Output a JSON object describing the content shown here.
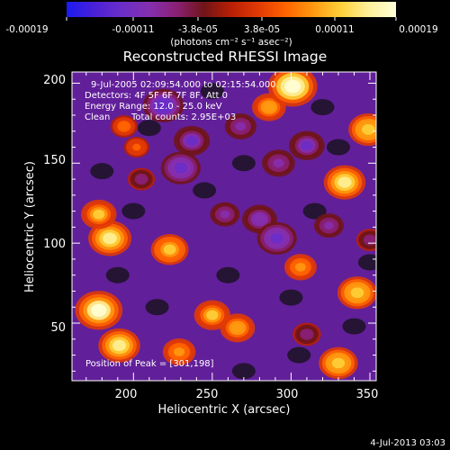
{
  "colorbar": {
    "tick_labels": [
      "-0.00019",
      "-0.00011",
      "-3.8e-05",
      "3.8e-05",
      "0.00011",
      "0.00019"
    ],
    "unit_label": "(photons cm⁻² s⁻¹ asec⁻²)",
    "colors": [
      "#1b1bf0",
      "#4a20d8",
      "#6a2ec8",
      "#852fb0",
      "#8a2075",
      "#701418",
      "#b81f05",
      "#e13a05",
      "#ff6400",
      "#ff9a10",
      "#ffd13a",
      "#fff09a",
      "#ffffd8"
    ]
  },
  "chart_data": {
    "type": "heatmap",
    "title": "Reconstructed RHESSI Image",
    "xlabel": "Heliocentric X (arcsec)",
    "ylabel": "Heliocentric Y (arcsec)",
    "xlim": [
      161,
      354
    ],
    "ylim": [
      14,
      207
    ],
    "xticks": [
      200,
      250,
      300,
      350
    ],
    "yticks": [
      50,
      100,
      150,
      200
    ],
    "color_scale_range": [
      -0.00019,
      0.00019
    ],
    "annotations": [
      "9-Jul-2005 02:09:54.000 to 02:15:54.000",
      "Detectors: 4F 5F 6F 7F 8F, Att 0",
      "Energy Range: 12.0 - 25.0 keV",
      "Clean",
      "Total counts: 2.95E+03"
    ],
    "peak_label": "Position of Peak = [301,198]",
    "peak_position": [
      301,
      198
    ],
    "approximate_bright_sources": [
      {
        "x": 178,
        "y": 58,
        "level": 0.95
      },
      {
        "x": 191,
        "y": 36,
        "level": 0.78
      },
      {
        "x": 185,
        "y": 103,
        "level": 0.82
      },
      {
        "x": 178,
        "y": 118,
        "level": 0.6
      },
      {
        "x": 223,
        "y": 96,
        "level": 0.66
      },
      {
        "x": 250,
        "y": 55,
        "level": 0.62
      },
      {
        "x": 229,
        "y": 32,
        "level": 0.52
      },
      {
        "x": 266,
        "y": 47,
        "level": 0.58
      },
      {
        "x": 334,
        "y": 138,
        "level": 0.78
      },
      {
        "x": 342,
        "y": 69,
        "level": 0.72
      },
      {
        "x": 330,
        "y": 25,
        "level": 0.7
      },
      {
        "x": 306,
        "y": 85,
        "level": 0.5
      },
      {
        "x": 349,
        "y": 171,
        "level": 0.72
      },
      {
        "x": 286,
        "y": 185,
        "level": 0.55
      },
      {
        "x": 301,
        "y": 198,
        "level": 1.0
      },
      {
        "x": 194,
        "y": 173,
        "level": 0.35
      },
      {
        "x": 202,
        "y": 160,
        "level": 0.3
      }
    ],
    "approximate_negative_sources": [
      {
        "x": 219,
        "y": 186,
        "level": -0.75
      },
      {
        "x": 237,
        "y": 164,
        "level": -0.62
      },
      {
        "x": 230,
        "y": 147,
        "level": -0.72
      },
      {
        "x": 268,
        "y": 173,
        "level": -0.48
      },
      {
        "x": 310,
        "y": 161,
        "level": -0.6
      },
      {
        "x": 292,
        "y": 150,
        "level": -0.52
      },
      {
        "x": 280,
        "y": 115,
        "level": -0.58
      },
      {
        "x": 291,
        "y": 103,
        "level": -0.72
      },
      {
        "x": 258,
        "y": 118,
        "level": -0.42
      },
      {
        "x": 324,
        "y": 111,
        "level": -0.42
      },
      {
        "x": 205,
        "y": 140,
        "level": -0.35
      },
      {
        "x": 310,
        "y": 43,
        "level": -0.38
      },
      {
        "x": 350,
        "y": 102,
        "level": -0.35
      }
    ]
  },
  "footer": {
    "timestamp": "4-Jul-2013 03:03"
  }
}
